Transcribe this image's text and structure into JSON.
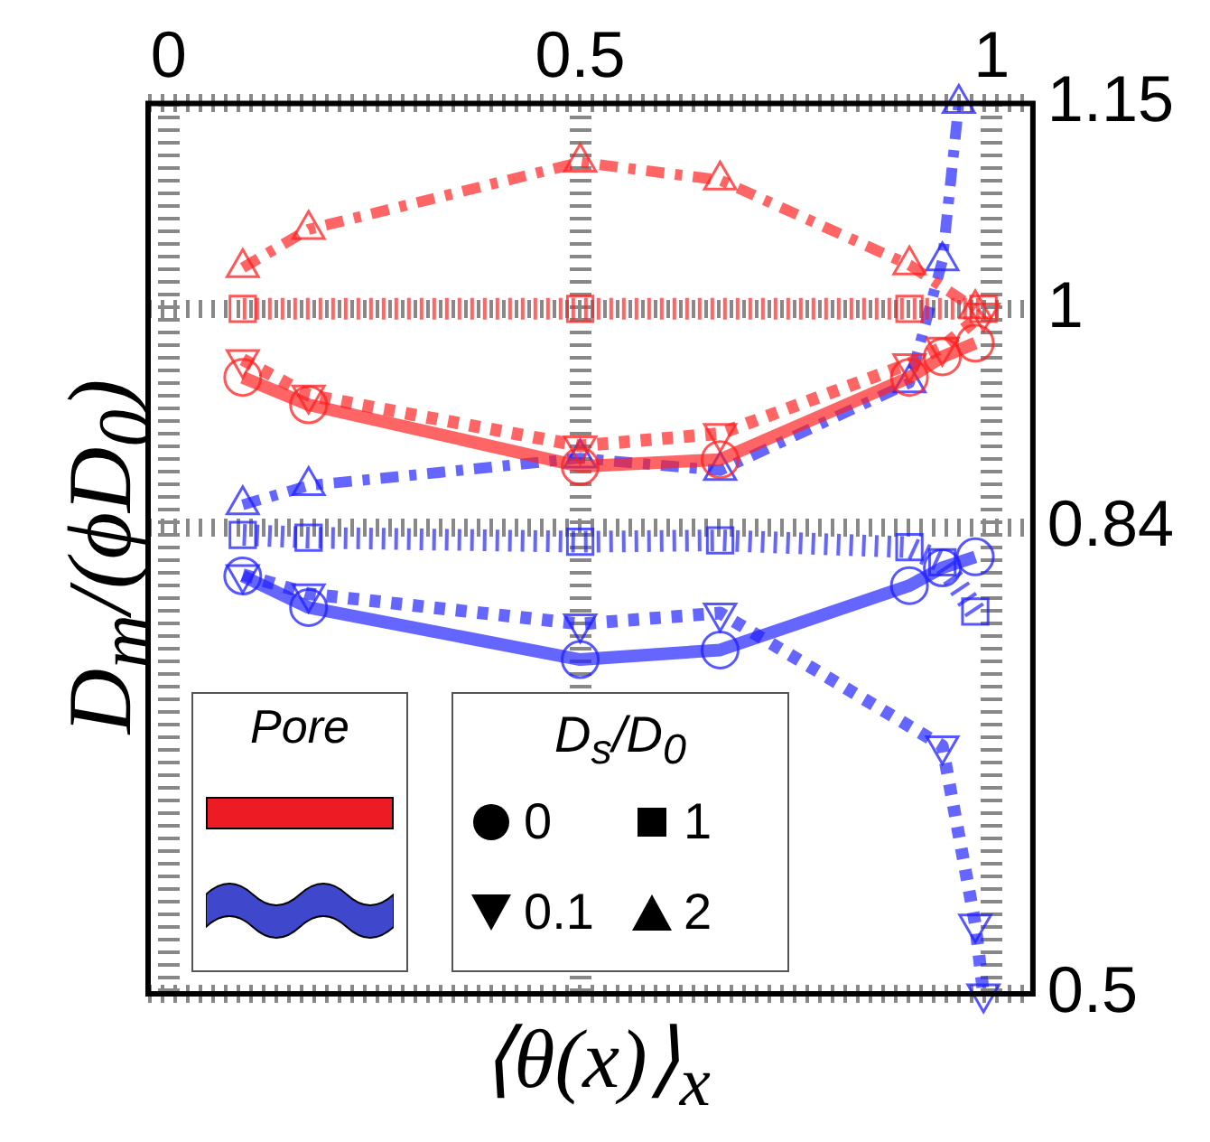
{
  "chart_data": {
    "type": "line",
    "xlabel": "⟨θ(x)⟩$_{x}$",
    "ylabel": "D$_{m}$/(ϕD$_{0}$)",
    "legend_title": "D$_{s}$/D$_{0}$",
    "annotations": [
      "Pore",
      "0",
      "1",
      "0.1",
      "2"
    ],
    "xlim": [
      -0.025,
      1.05
    ],
    "ylim": [
      0.5,
      1.15
    ],
    "xticks": [
      0,
      0.5,
      1
    ],
    "yticks": [
      0.5,
      0.84,
      1,
      1.15
    ],
    "grid": true,
    "series": [
      {
        "color": "#ff2020",
        "marker": "circle",
        "line_style": "solid",
        "x": [
          0.09,
          0.17,
          0.5,
          0.67,
          0.9,
          0.94,
          0.98
        ],
        "values": [
          0.95,
          0.93,
          0.885,
          0.89,
          0.95,
          0.965,
          0.975
        ]
      },
      {
        "color": "#ff2020",
        "marker": "square",
        "line_style": "dashed",
        "x": [
          0.09,
          0.5,
          0.9,
          0.99
        ],
        "values": [
          1.0,
          1.0,
          1.0,
          1.0
        ]
      },
      {
        "color": "#ff2020",
        "marker": "triangle",
        "line_style": "dotted",
        "x": [
          0.09,
          0.17,
          0.5,
          0.67,
          0.9,
          0.94,
          0.99
        ],
        "values": [
          0.963,
          0.937,
          0.9,
          0.909,
          0.96,
          0.972,
          0.997
        ]
      },
      {
        "color": "#ff2020",
        "marker": "triangle",
        "line_style": "dashed",
        "x": [
          0.09,
          0.17,
          0.5,
          0.67,
          0.9,
          0.98
        ],
        "values": [
          1.03,
          1.058,
          1.107,
          1.094,
          1.032,
          1.0
        ]
      },
      {
        "color": "#2020ff",
        "marker": "circle",
        "line_style": "solid",
        "x": [
          0.09,
          0.17,
          0.5,
          0.67,
          0.9,
          0.94,
          0.98
        ],
        "values": [
          0.805,
          0.782,
          0.744,
          0.751,
          0.798,
          0.811,
          0.819
        ]
      },
      {
        "color": "#2020ff",
        "marker": "square",
        "line_style": "dashed",
        "x": [
          0.09,
          0.17,
          0.5,
          0.67,
          0.9,
          0.94,
          0.98
        ],
        "values": [
          0.835,
          0.833,
          0.83,
          0.831,
          0.826,
          0.815,
          0.779
        ]
      },
      {
        "color": "#2020ff",
        "marker": "triangle",
        "line_style": "dotted",
        "x": [
          0.09,
          0.17,
          0.5,
          0.67,
          0.94,
          0.98,
          0.99
        ],
        "values": [
          0.806,
          0.792,
          0.77,
          0.778,
          0.681,
          0.551,
          0.5
        ]
      },
      {
        "color": "#2020ff",
        "marker": "triangle",
        "line_style": "dashed",
        "x": [
          0.09,
          0.17,
          0.5,
          0.67,
          0.9,
          0.94,
          0.96
        ],
        "values": [
          0.857,
          0.871,
          0.891,
          0.882,
          0.946,
          1.035,
          1.15
        ]
      }
    ]
  }
}
